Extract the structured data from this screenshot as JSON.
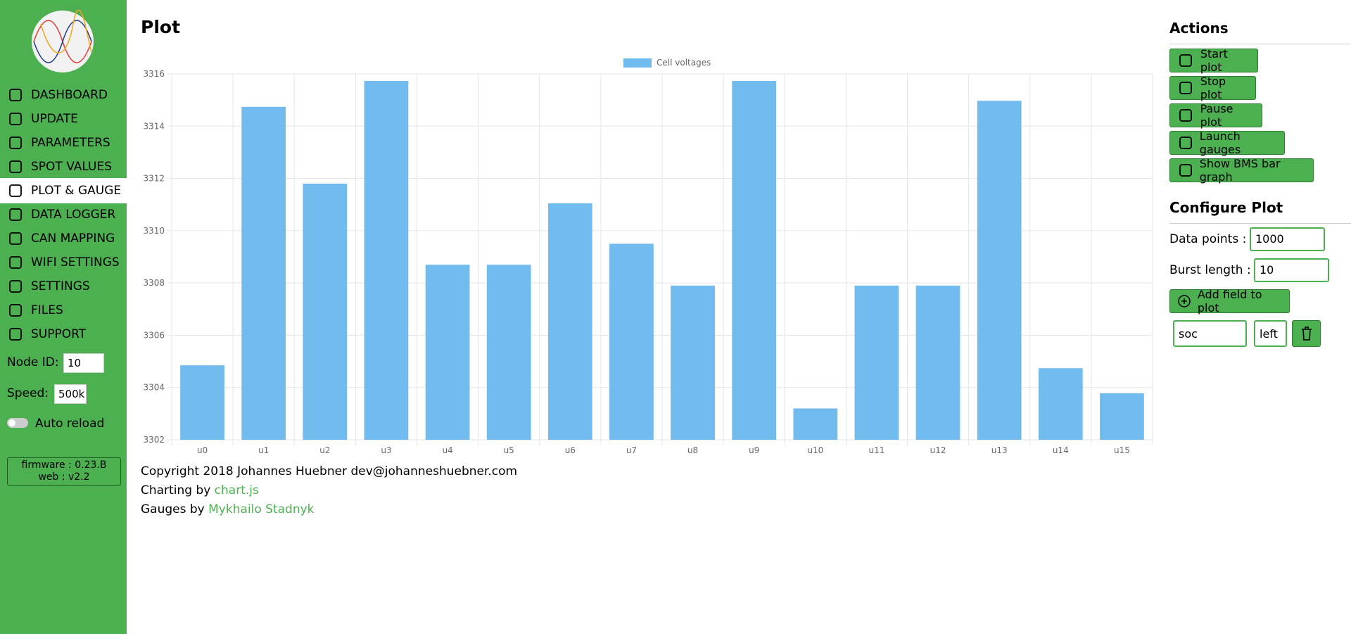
{
  "sidebar": {
    "nav": [
      "DASHBOARD",
      "UPDATE",
      "PARAMETERS",
      "SPOT VALUES",
      "PLOT & GAUGE",
      "DATA LOGGER",
      "CAN MAPPING",
      "WIFI SETTINGS",
      "SETTINGS",
      "FILES",
      "SUPPORT"
    ],
    "node_id_label": "Node ID:",
    "node_id": "10",
    "speed_label": "Speed:",
    "speed": "500k",
    "auto_reload": "Auto reload",
    "firmware": "firmware : 0.23.B",
    "web": "web : v2.2"
  },
  "main": {
    "title": "Plot",
    "footer": {
      "copyright": "Copyright 2018 Johannes Huebner dev@johanneshuebner.com",
      "charting_prefix": "Charting by",
      "charting_link": "chart.js",
      "gauges_prefix": "Gauges by",
      "gauges_link": "Mykhailo Stadnyk"
    }
  },
  "chart_data": {
    "type": "bar",
    "categories": [
      "u0",
      "u1",
      "u2",
      "u3",
      "u4",
      "u5",
      "u6",
      "u7",
      "u8",
      "u9",
      "u10",
      "u11",
      "u12",
      "u13",
      "u14",
      "u15"
    ],
    "series": [
      {
        "name": "Cell voltages",
        "color": "#72bbee",
        "values": [
          3304.85,
          3314.74,
          3311.8,
          3315.73,
          3308.7,
          3308.7,
          3311.05,
          3309.5,
          3307.9,
          3315.73,
          3303.2,
          3307.9,
          3307.9,
          3314.97,
          3304.74,
          3303.78
        ]
      }
    ],
    "ylim": [
      3302,
      3316
    ],
    "yticks": [
      3302,
      3304,
      3306,
      3308,
      3310,
      3312,
      3314,
      3316
    ],
    "grid": true,
    "legend": "top"
  },
  "actions": {
    "title": "Actions",
    "buttons": [
      "Start plot",
      "Stop plot",
      "Pause plot",
      "Launch gauges",
      "Show BMS bar graph"
    ]
  },
  "configure": {
    "title": "Configure Plot",
    "data_points_label": "Data points :",
    "data_points": "1000",
    "burst_length_label": "Burst length :",
    "burst_length": "10",
    "add_field": "Add field to plot",
    "field_name": "soc",
    "field_axis": "left"
  }
}
